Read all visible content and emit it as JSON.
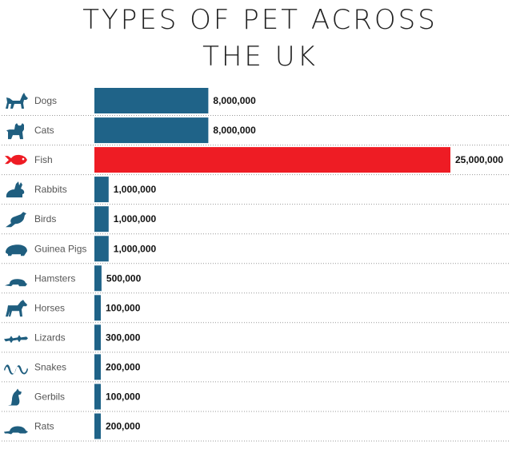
{
  "title_line1": "TYPES OF PET ACROSS",
  "title_line2": "THE UK",
  "colors": {
    "default_bar": "#1f6388",
    "highlight_bar": "#ee1c24",
    "icon": "#1f5e7f",
    "highlight_icon": "#ee1c24"
  },
  "chart_data": {
    "type": "bar",
    "orientation": "horizontal",
    "title": "TYPES OF PET ACROSS THE UK",
    "categories": [
      "Dogs",
      "Cats",
      "Fish",
      "Rabbits",
      "Birds",
      "Guinea Pigs",
      "Hamsters",
      "Horses",
      "Lizards",
      "Snakes",
      "Gerbils",
      "Rats"
    ],
    "values": [
      8000000,
      8000000,
      25000000,
      1000000,
      1000000,
      1000000,
      500000,
      100000,
      300000,
      200000,
      100000,
      200000
    ],
    "value_labels": [
      "8,000,000",
      "8,000,000",
      "25,000,000",
      "1,000,000",
      "1,000,000",
      "1,000,000",
      "500,000",
      "100,000",
      "300,000",
      "200,000",
      "100,000",
      "200,000"
    ],
    "icons": [
      "dog-icon",
      "cat-icon",
      "fish-icon",
      "rabbit-icon",
      "bird-icon",
      "guinea-pig-icon",
      "hamster-icon",
      "horse-icon",
      "lizard-icon",
      "snake-icon",
      "gerbil-icon",
      "rat-icon"
    ],
    "highlight_index": 2,
    "grid": false,
    "xlabel": "",
    "ylabel": ""
  }
}
